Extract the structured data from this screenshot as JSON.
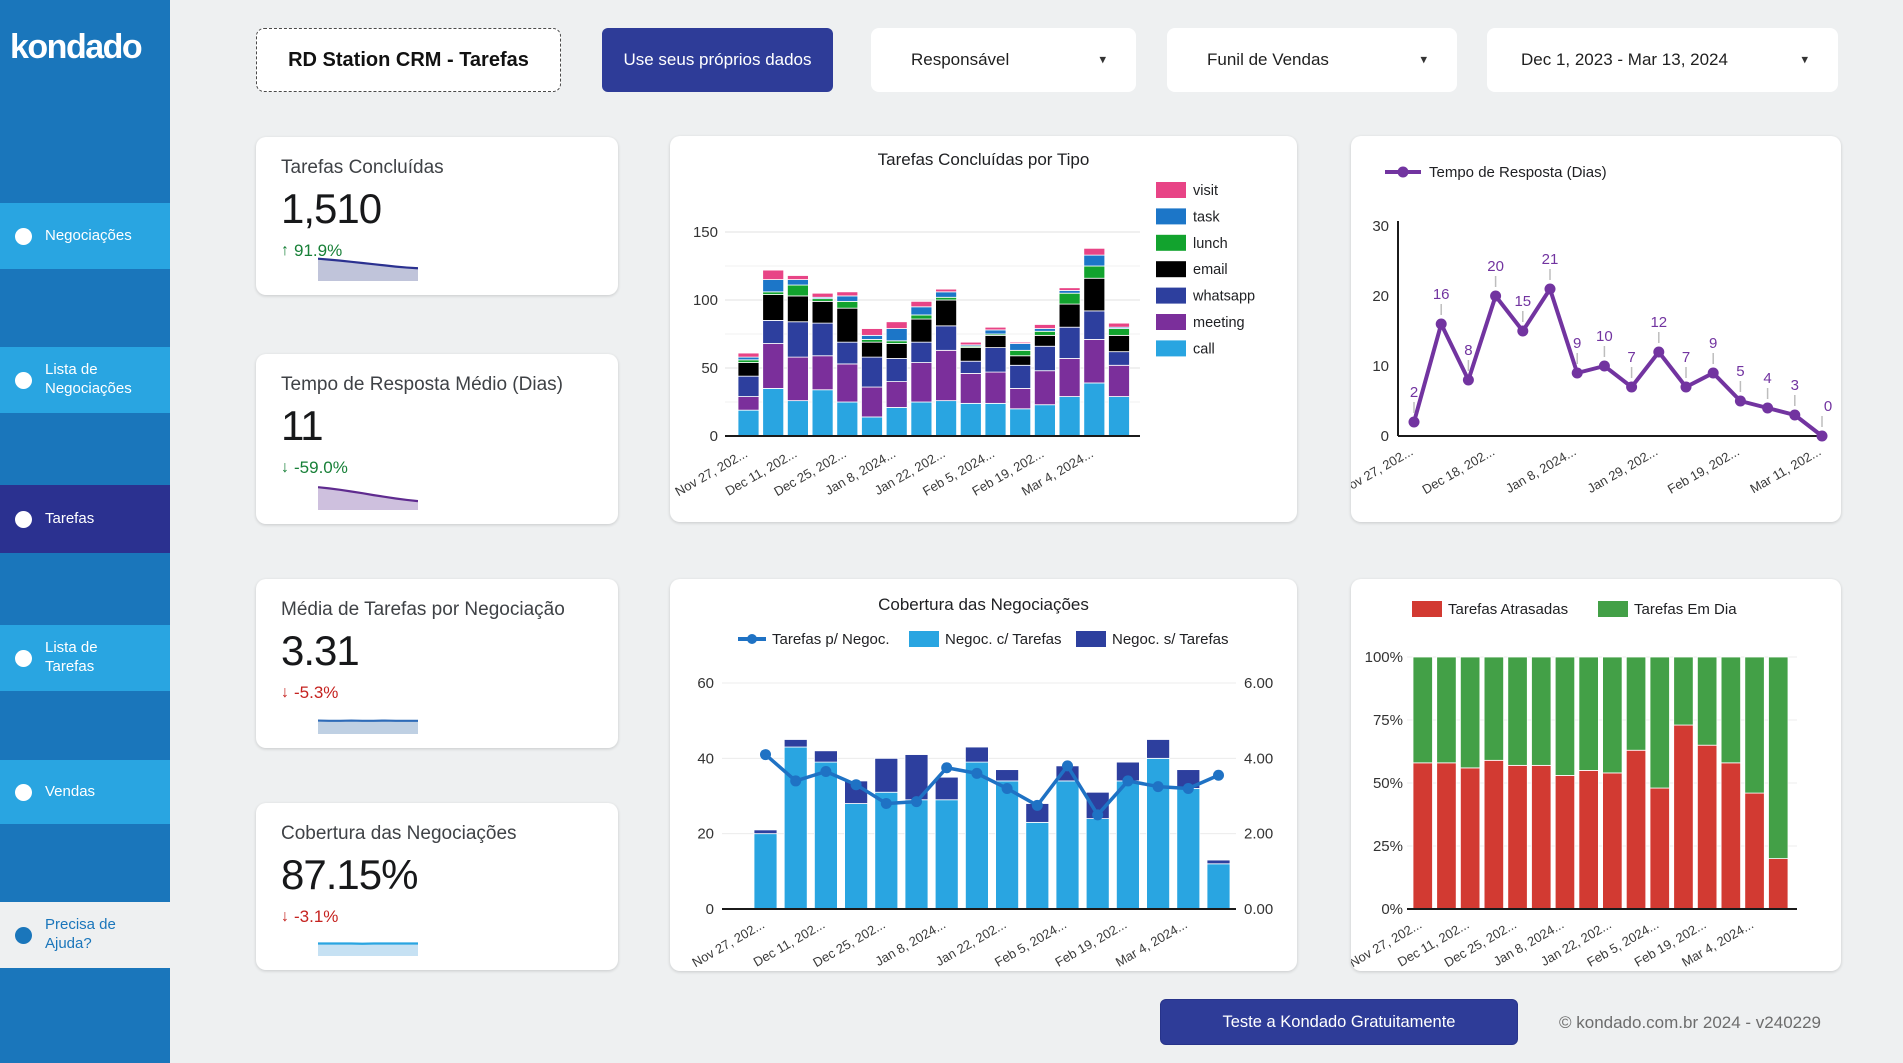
{
  "colors": {
    "sidebar_bg": "#1a76bb",
    "sidebar_item": "#29a5e1",
    "sidebar_active": "#2b3190",
    "navy_button": "#2e3c98",
    "positive": "#188038",
    "negative": "#c5221f",
    "call": "#29a5e1",
    "meeting": "#7b2f9b",
    "whatsapp": "#2d3f9e",
    "email": "#000000",
    "lunch": "#12a32e",
    "task": "#1c76c8",
    "visit": "#e84486",
    "line_purple": "#7234a0",
    "combo_line": "#1f72c4",
    "late_red": "#d23a32",
    "ontime_green": "#43a047"
  },
  "icons": {
    "caret_down": "▾",
    "arrow_up": "↑",
    "arrow_down": "↓"
  },
  "sidebar": {
    "logo": "kondado",
    "items": [
      {
        "label": "Negociações",
        "active": false
      },
      {
        "label": "Lista de Negociações",
        "active": false
      },
      {
        "label": "Tarefas",
        "active": true
      },
      {
        "label": "Lista de Tarefas",
        "active": false
      },
      {
        "label": "Vendas",
        "active": false
      }
    ],
    "help_label": "Precisa de Ajuda?"
  },
  "topbar": {
    "report_title": "RD Station CRM - Tarefas",
    "cta_label": "Use seus próprios dados",
    "filters": [
      {
        "label": "Responsável"
      },
      {
        "label": "Funil de Vendas"
      },
      {
        "label": "Dec 1, 2023 - Mar 13, 2024"
      }
    ]
  },
  "scorecards": [
    {
      "title": "Tarefas Concluídas",
      "value": "1,510",
      "delta": "91.9%",
      "delta_dir": "up",
      "delta_color": "#188038",
      "line_color": "#2b3190",
      "fill_color": "#c0c4da",
      "trend": [
        0.93,
        0.89,
        0.85,
        0.8,
        0.75,
        0.7,
        0.65,
        0.6,
        0.56,
        0.53
      ]
    },
    {
      "title": "Tempo de Resposta Médio (Dias)",
      "value": "11",
      "delta": "-59.0%",
      "delta_dir": "down",
      "delta_color": "#188038",
      "line_color": "#5f2b8f",
      "fill_color": "#cec0de",
      "trend": [
        0.95,
        0.9,
        0.84,
        0.77,
        0.7,
        0.62,
        0.55,
        0.48,
        0.42,
        0.37
      ]
    },
    {
      "title": "Média de Tarefas por Negociação",
      "value": "3.31",
      "delta": "-5.3%",
      "delta_dir": "down",
      "delta_color": "#c5221f",
      "line_color": "#2e6bb8",
      "fill_color": "#bfd0e3",
      "trend": [
        0.56,
        0.55,
        0.55,
        0.56,
        0.55,
        0.55,
        0.56,
        0.55,
        0.55,
        0.55
      ]
    },
    {
      "title": "Cobertura das Negociações",
      "value": "87.15%",
      "delta": "-3.1%",
      "delta_dir": "down",
      "delta_color": "#c5221f",
      "line_color": "#29a5e1",
      "fill_color": "#c6e1f3",
      "trend": [
        0.52,
        0.52,
        0.52,
        0.52,
        0.51,
        0.52,
        0.52,
        0.52,
        0.52,
        0.52
      ]
    }
  ],
  "chart_data": [
    {
      "id": "tarefas-por-tipo",
      "type": "bar",
      "stacked": true,
      "title": "Tarefas Concluídas por Tipo",
      "n_points": 16,
      "tick_every": 2,
      "x_tick_labels": [
        "Nov 27, 202...",
        "Dec 11, 202...",
        "Dec 25, 202...",
        "Jan 8, 2024...",
        "Jan 22, 202...",
        "Feb 5, 2024...",
        "Feb 19, 202...",
        "Mar 4, 2024..."
      ],
      "ylim": [
        0,
        150
      ],
      "yticks": [
        0,
        50,
        100,
        150
      ],
      "grid_step": 25,
      "legend_position": "right",
      "legend_order": [
        "visit",
        "task",
        "lunch",
        "email",
        "whatsapp",
        "meeting",
        "call"
      ],
      "series": [
        {
          "name": "call",
          "color": "#29a5e1",
          "values": [
            19,
            35,
            26,
            34,
            25,
            14,
            21,
            25,
            26,
            24,
            24,
            20,
            23,
            29,
            39,
            29
          ]
        },
        {
          "name": "meeting",
          "color": "#7b2f9b",
          "values": [
            10,
            33,
            32,
            25,
            28,
            22,
            19,
            29,
            37,
            22,
            23,
            15,
            25,
            28,
            32,
            23
          ]
        },
        {
          "name": "whatsapp",
          "color": "#2d3f9e",
          "values": [
            15,
            17,
            26,
            24,
            16,
            22,
            17,
            15,
            18,
            9,
            18,
            17,
            18,
            23,
            21,
            10
          ]
        },
        {
          "name": "email",
          "color": "#000000",
          "values": [
            10,
            19,
            19,
            16,
            25,
            11,
            11,
            17,
            19,
            10,
            9,
            7,
            8,
            17,
            24,
            12
          ]
        },
        {
          "name": "lunch",
          "color": "#12a32e",
          "values": [
            2,
            2,
            8,
            2,
            5,
            2,
            2,
            3,
            2,
            1,
            1,
            4,
            3,
            8,
            9,
            5
          ]
        },
        {
          "name": "task",
          "color": "#1c76c8",
          "values": [
            2,
            9,
            4,
            1,
            4,
            3,
            9,
            6,
            4,
            1,
            3,
            5,
            2,
            2,
            8,
            1
          ]
        },
        {
          "name": "visit",
          "color": "#e84486",
          "values": [
            3,
            7,
            3,
            3,
            3,
            5,
            5,
            4,
            2,
            2,
            2,
            1,
            3,
            2,
            5,
            3
          ]
        }
      ]
    },
    {
      "id": "tempo-de-resposta",
      "type": "line",
      "legend_label": "Tempo de Resposta (Dias)",
      "color": "#7234a0",
      "n_points": 16,
      "tick_every": 3,
      "x_tick_labels": [
        "Nov 27, 202...",
        "Dec 18, 202...",
        "Jan 8, 2024...",
        "Jan 29, 202...",
        "Feb 19, 202...",
        "Mar 11, 202..."
      ],
      "ylim": [
        0,
        30
      ],
      "yticks": [
        0,
        10,
        20,
        30
      ],
      "grid": false,
      "values": [
        2,
        16,
        8,
        20,
        15,
        21,
        9,
        10,
        7,
        12,
        7,
        9,
        5,
        4,
        3,
        0
      ],
      "point_labels": [
        "2",
        "16",
        "8",
        "20",
        "15",
        "21",
        "9",
        "10",
        "7",
        "12",
        "7",
        "9",
        "5",
        "4",
        "3",
        "0"
      ]
    },
    {
      "id": "cobertura-das-negociacoes",
      "type": "combo",
      "title": "Cobertura das Negociações",
      "n_points": 16,
      "tick_every": 2,
      "x_tick_labels": [
        "Nov 27, 202...",
        "Dec 11, 202...",
        "Dec 25, 202...",
        "Jan 8, 2024...",
        "Jan 22, 202...",
        "Feb 5, 2024...",
        "Feb 19, 202...",
        "Mar 4, 2024..."
      ],
      "left_ylim": [
        0,
        60
      ],
      "left_yticks": [
        0,
        20,
        40,
        60
      ],
      "right_ylim": [
        0,
        6
      ],
      "right_ytick_labels": [
        "0.00",
        "2.00",
        "4.00",
        "6.00"
      ],
      "bar_series": [
        {
          "name": "Negoc. c/ Tarefas",
          "color": "#29a5e1",
          "values": [
            20,
            43,
            39,
            28,
            31,
            29,
            29,
            39,
            34,
            23,
            34,
            24,
            34,
            40,
            32,
            12
          ]
        },
        {
          "name": "Negoc. s/ Tarefas",
          "color": "#2d3f9e",
          "values": [
            1,
            2,
            3,
            6,
            9,
            12,
            6,
            4,
            3,
            5,
            4,
            7,
            5,
            5,
            5,
            1
          ]
        }
      ],
      "line_series": {
        "name": "Tarefas p/ Negoc.",
        "color": "#1f72c4",
        "axis": "right",
        "values": [
          4.1,
          3.4,
          3.65,
          3.3,
          2.8,
          2.85,
          3.75,
          3.6,
          3.2,
          2.75,
          3.8,
          2.5,
          3.4,
          3.25,
          3.2,
          3.55
        ]
      }
    },
    {
      "id": "tarefas-atrasadas-em-dia",
      "type": "percent-bar",
      "stacked": true,
      "n_points": 16,
      "tick_every": 2,
      "x_tick_labels": [
        "Nov 27, 202...",
        "Dec 11, 202...",
        "Dec 25, 202...",
        "Jan 8, 2024...",
        "Jan 22, 202...",
        "Feb 5, 2024...",
        "Feb 19, 202...",
        "Mar 4, 2024..."
      ],
      "ytick_labels": [
        "0%",
        "25%",
        "50%",
        "75%",
        "100%"
      ],
      "series": [
        {
          "name": "Tarefas Atrasadas",
          "color": "#d23a32",
          "values": [
            58,
            58,
            56,
            59,
            57,
            57,
            53,
            55,
            54,
            63,
            48,
            73,
            65,
            58,
            46,
            20
          ]
        },
        {
          "name": "Tarefas Em Dia",
          "color": "#43a047",
          "values": [
            42,
            42,
            44,
            41,
            43,
            43,
            47,
            45,
            46,
            37,
            52,
            27,
            35,
            42,
            54,
            80
          ]
        }
      ]
    }
  ],
  "footer": {
    "cta_label": "Teste a Kondado Gratuitamente",
    "copyright": "© kondado.com.br 2024 - v240229"
  }
}
